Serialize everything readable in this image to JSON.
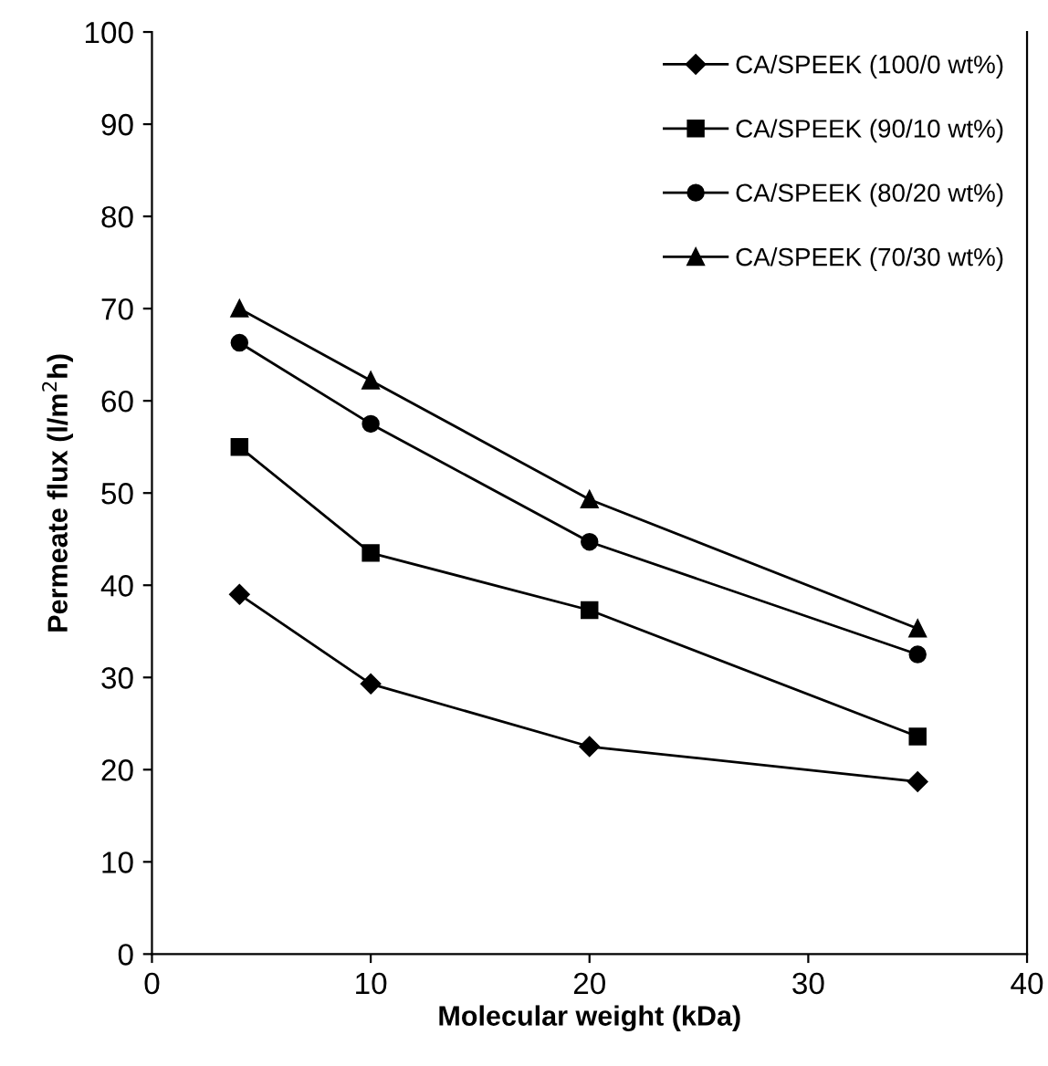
{
  "chart_data": {
    "type": "line",
    "xlabel": "Molecular weight (kDa)",
    "ylabel": "Permeate flux (l/m$^{2}$h)",
    "x": [
      4,
      10,
      20,
      35
    ],
    "series": [
      {
        "name": "CA/SPEEK (100/0 wt%)",
        "color": "#000000",
        "marker": "diamond",
        "values": [
          39,
          29.3,
          22.5,
          18.7
        ]
      },
      {
        "name": "CA/SPEEK (90/10 wt%)",
        "color": "#000000",
        "marker": "square",
        "values": [
          55,
          43.5,
          37.3,
          23.6
        ]
      },
      {
        "name": "CA/SPEEK (80/20 wt%)",
        "color": "#000000",
        "marker": "circle",
        "values": [
          66.3,
          57.5,
          44.7,
          32.5
        ]
      },
      {
        "name": "CA/SPEEK (70/30 wt%)",
        "color": "#000000",
        "marker": "triangle",
        "values": [
          70,
          62.2,
          49.3,
          35.3
        ]
      }
    ],
    "xlim": [
      0,
      40
    ],
    "xticks": [
      0,
      10,
      20,
      30,
      40
    ],
    "ylim": [
      0,
      100
    ],
    "yticks": [
      0,
      10,
      20,
      30,
      40,
      50,
      60,
      70,
      80,
      90,
      100
    ],
    "grid": false,
    "legend": "top right",
    "line_style": "solid"
  }
}
